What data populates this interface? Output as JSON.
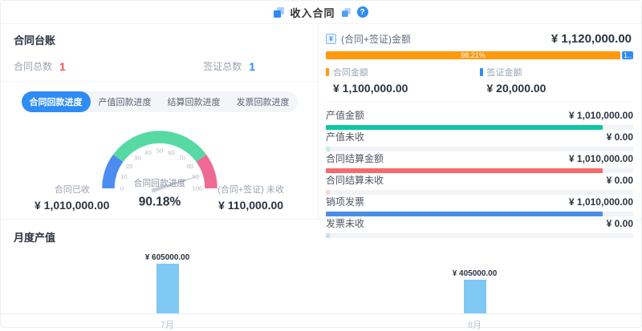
{
  "header": {
    "title": "收入合同",
    "help_label": "?"
  },
  "ledger": {
    "title": "合同台账",
    "counters": [
      {
        "label": "合同总数",
        "value": "1",
        "color": "#fb4e4e"
      },
      {
        "label": "签证总数",
        "value": "1",
        "color": "#2f8cf5"
      }
    ],
    "tabs": [
      {
        "label": "合同回款进度",
        "active": true
      },
      {
        "label": "产值回款进度",
        "active": false
      },
      {
        "label": "结算回款进度",
        "active": false
      },
      {
        "label": "发票回款进度",
        "active": false
      }
    ],
    "stats": [
      {
        "label": "合同已收",
        "value": "¥ 1,010,000.00"
      },
      {
        "label": "(合同+签证) 未收",
        "value": "¥ 110,000.00"
      }
    ]
  },
  "summary": {
    "label": "(合同+签证)金额",
    "total": "¥ 1,120,000.00",
    "stacked_bar": [
      {
        "name": "合同金额",
        "percent": 98.21,
        "text": "98.21%",
        "color": "#ff9a0e"
      },
      {
        "name": "签证金额",
        "percent": 1.79,
        "text": "1..",
        "color": "#2f8cf5"
      }
    ],
    "legend": [
      {
        "label": "合同金额",
        "value": "¥ 1,100,000.00",
        "color": "#ff9a0e"
      },
      {
        "label": "签证金额",
        "value": "¥ 20,000.00",
        "color": "#2f8cf5"
      }
    ],
    "items": [
      {
        "label": "产值金额",
        "value": "¥ 1,010,000.00",
        "percent": 90.2,
        "color": "#10c7a5"
      },
      {
        "label": "产值未收",
        "value": "¥ 0.00",
        "percent": 1.2,
        "color": "#bfeee4"
      },
      {
        "label": "合同结算金额",
        "value": "¥ 1,010,000.00",
        "percent": 90.2,
        "color": "#f56a6a"
      },
      {
        "label": "合同结算未收",
        "value": "¥ 0.00",
        "percent": 1.2,
        "color": "#fbd6d6"
      },
      {
        "label": "销项发票",
        "value": "¥ 1,010,000.00",
        "percent": 90.2,
        "color": "#4a8ce8"
      },
      {
        "label": "发票未收",
        "value": "¥ 0.00",
        "percent": 1.2,
        "color": "#cadef8"
      }
    ]
  },
  "monthly": {
    "title": "月度产值"
  },
  "chart_data": [
    {
      "type": "gauge",
      "title": "合同回款进度",
      "value": 90.18,
      "display_value": "90.18%",
      "min": 0,
      "max": 100,
      "ticks": [
        0,
        10,
        20,
        30,
        40,
        50,
        60,
        70,
        80,
        90,
        100
      ],
      "segments": [
        {
          "from": 0,
          "to": 20,
          "color": "#4a8cf0"
        },
        {
          "from": 20,
          "to": 80,
          "color": "#57d9a3"
        },
        {
          "from": 80,
          "to": 100,
          "color": "#ee6a94"
        }
      ],
      "needle_color": "#c9cfd8"
    },
    {
      "type": "bar",
      "title": "月度产值",
      "categories": [
        "7月",
        "8月"
      ],
      "values": [
        605000,
        405000
      ],
      "value_labels": [
        "¥ 605000.00",
        "¥ 405000.00"
      ],
      "bar_color": "#7ec8f3",
      "ylim": [
        0,
        650000
      ],
      "grid": false,
      "legend_position": "none"
    }
  ]
}
